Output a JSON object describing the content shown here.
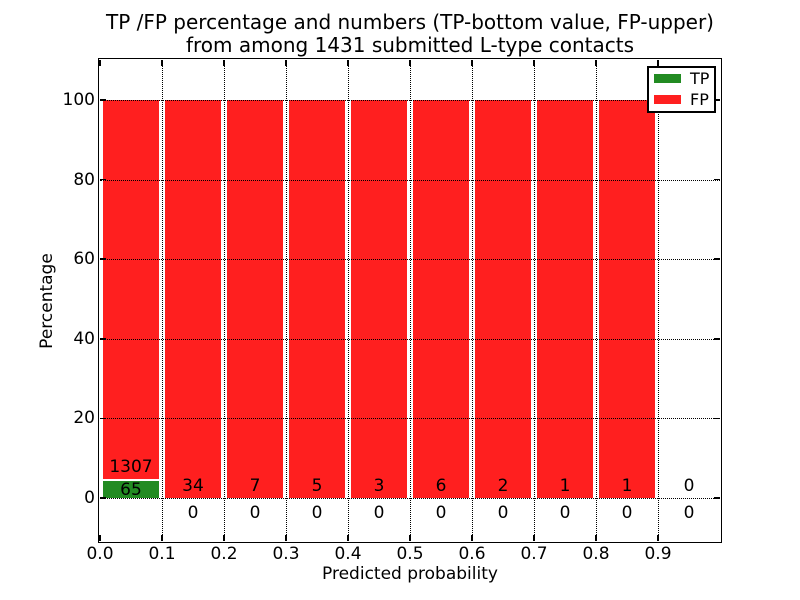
{
  "title": {
    "line1": "TP /FP percentage and numbers (TP-bottom value, FP-upper)",
    "line2": "from among 1431 submitted L-type contacts"
  },
  "chart_data": {
    "type": "bar",
    "stacked": true,
    "unit": "percent",
    "title": "TP /FP percentage and numbers (TP-bottom value, FP-upper) from among 1431 submitted L-type contacts",
    "xlabel": "Predicted probability",
    "ylabel": "Percentage",
    "bin_edges": [
      0.0,
      0.1,
      0.2,
      0.3,
      0.4,
      0.5,
      0.6,
      0.7,
      0.8,
      0.9,
      1.0
    ],
    "categories": [
      "0.0-0.1",
      "0.1-0.2",
      "0.2-0.3",
      "0.3-0.4",
      "0.4-0.5",
      "0.5-0.6",
      "0.6-0.7",
      "0.7-0.8",
      "0.8-0.9",
      "0.9-1.0"
    ],
    "series": [
      {
        "name": "TP",
        "color": "#228b22",
        "counts": [
          65,
          0,
          0,
          0,
          0,
          0,
          0,
          0,
          0,
          0
        ],
        "percents": [
          4.74,
          0,
          0,
          0,
          0,
          0,
          0,
          0,
          0,
          0
        ]
      },
      {
        "name": "FP",
        "color": "#ff1f1f",
        "counts": [
          1307,
          34,
          7,
          5,
          3,
          6,
          2,
          1,
          1,
          0
        ],
        "percents": [
          95.26,
          100,
          100,
          100,
          100,
          100,
          100,
          100,
          100,
          0
        ]
      }
    ],
    "xticks": [
      "0.0",
      "0.1",
      "0.2",
      "0.3",
      "0.4",
      "0.5",
      "0.6",
      "0.7",
      "0.8",
      "0.9"
    ],
    "yticks": [
      "0",
      "20",
      "40",
      "60",
      "80",
      "100"
    ],
    "xlim": [
      0.0,
      1.0
    ],
    "ylim": [
      -11,
      110
    ],
    "grid": {
      "style": "dotted",
      "color": "#000000",
      "on": true
    },
    "bar_edge_color": "#ffffff",
    "legend": {
      "position": "upper right",
      "entries": [
        {
          "label": "TP",
          "color": "#228b22"
        },
        {
          "label": "FP",
          "color": "#ff1f1f"
        }
      ]
    }
  }
}
